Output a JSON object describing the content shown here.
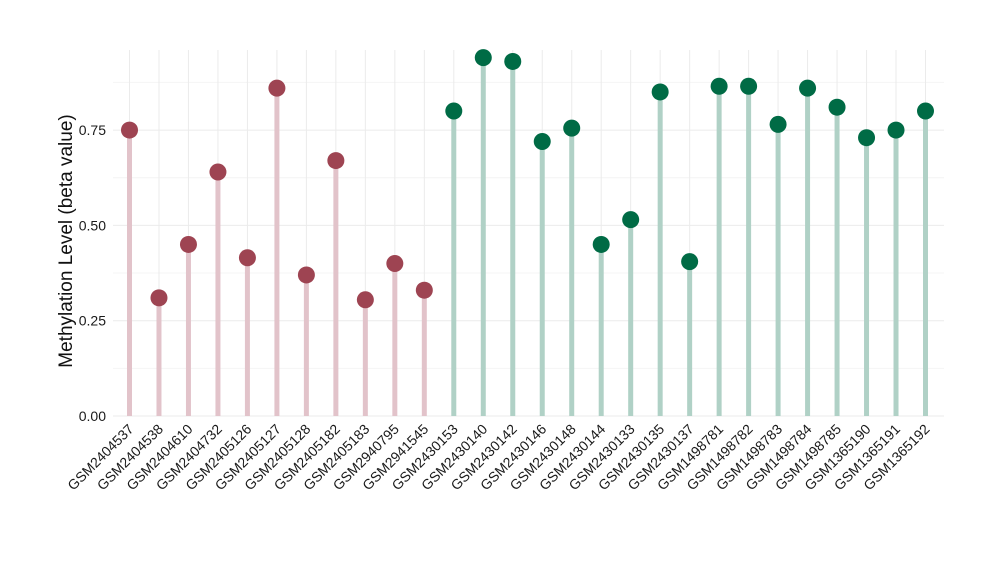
{
  "chart_data": {
    "type": "lollipop",
    "ylabel": "Methylation Level (beta value)",
    "xlabel": "",
    "title": "",
    "ylim": [
      0,
      0.96
    ],
    "yticks": [
      0,
      0.25,
      0.5,
      0.75
    ],
    "ytick_labels": [
      "0.00",
      "0.25",
      "0.50",
      "0.75"
    ],
    "grid": true,
    "legend": "none",
    "colors": {
      "group_a_point": "#9e4452",
      "group_a_stem": "#e2c3ca",
      "group_b_point": "#006b45",
      "group_b_stem": "#b0d1c6"
    },
    "categories": [
      "GSM2404537",
      "GSM2404538",
      "GSM2404610",
      "GSM2404732",
      "GSM2405126",
      "GSM2405127",
      "GSM2405128",
      "GSM2405182",
      "GSM2405183",
      "GSM2940795",
      "GSM2941545",
      "GSM2430153",
      "GSM2430140",
      "GSM2430142",
      "GSM2430146",
      "GSM2430148",
      "GSM2430144",
      "GSM2430133",
      "GSM2430135",
      "GSM2430137",
      "GSM1498781",
      "GSM1498782",
      "GSM1498783",
      "GSM1498784",
      "GSM1498785",
      "GSM1365190",
      "GSM1365191",
      "GSM1365192"
    ],
    "values": [
      0.75,
      0.31,
      0.45,
      0.64,
      0.415,
      0.86,
      0.37,
      0.67,
      0.305,
      0.4,
      0.33,
      0.8,
      0.94,
      0.93,
      0.72,
      0.755,
      0.45,
      0.515,
      0.85,
      0.405,
      0.865,
      0.865,
      0.765,
      0.86,
      0.81,
      0.73,
      0.75,
      0.8
    ],
    "groups": [
      "a",
      "a",
      "a",
      "a",
      "a",
      "a",
      "a",
      "a",
      "a",
      "a",
      "a",
      "b",
      "b",
      "b",
      "b",
      "b",
      "b",
      "b",
      "b",
      "b",
      "b",
      "b",
      "b",
      "b",
      "b",
      "b",
      "b",
      "b"
    ]
  }
}
